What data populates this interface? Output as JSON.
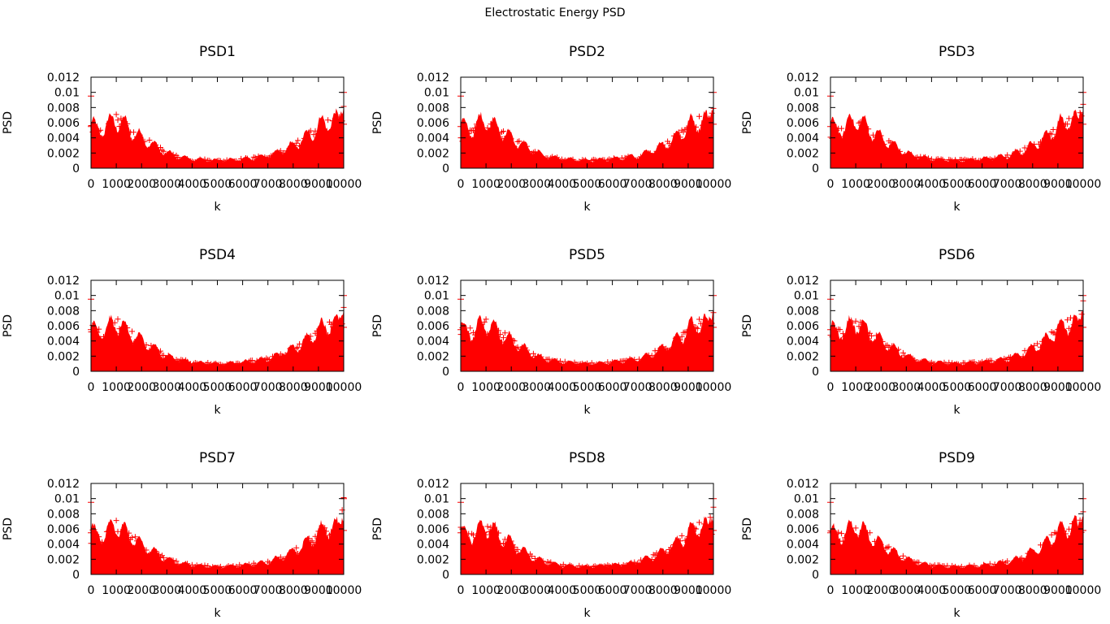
{
  "figure_title": "Electrostatic Energy PSD",
  "colors": {
    "series": "#ff0000",
    "axis": "#000000"
  },
  "chart_data": [
    {
      "type": "scatter",
      "title": "PSD1",
      "xlabel": "k",
      "ylabel": "PSD",
      "xlim": [
        0,
        10000
      ],
      "ylim": [
        0,
        0.012
      ],
      "xticks": [
        "0",
        "1000",
        "2000",
        "3000",
        "4000",
        "5000",
        "6000",
        "7000",
        "8000",
        "9000",
        "10000"
      ],
      "yticks": [
        "0",
        "0.002",
        "0.004",
        "0.006",
        "0.008",
        "0.01",
        "0.012"
      ],
      "envelope": {
        "k": [
          0,
          200,
          600,
          1000,
          1500,
          2000,
          2500,
          3000,
          3500,
          4000,
          5000,
          6000,
          6500,
          7000,
          7500,
          8000,
          8500,
          9000,
          9500,
          9800,
          10000
        ],
        "psd": [
          0.006,
          0.005,
          0.0055,
          0.0065,
          0.0052,
          0.004,
          0.003,
          0.002,
          0.0015,
          0.0012,
          0.001,
          0.0012,
          0.0014,
          0.0016,
          0.0022,
          0.003,
          0.004,
          0.0055,
          0.0065,
          0.006,
          0.01
        ]
      },
      "mark": "plus",
      "grid": false,
      "legend": "none"
    },
    {
      "type": "scatter",
      "title": "PSD2",
      "xlabel": "k",
      "ylabel": "PSD",
      "xlim": [
        0,
        10000
      ],
      "ylim": [
        0,
        0.012
      ],
      "xticks": [
        "0",
        "1000",
        "2000",
        "3000",
        "4000",
        "5000",
        "6000",
        "7000",
        "8000",
        "9000",
        "10000"
      ],
      "yticks": [
        "0",
        "0.002",
        "0.004",
        "0.006",
        "0.008",
        "0.01",
        "0.012"
      ],
      "envelope": {
        "k": [
          0,
          200,
          600,
          1000,
          1500,
          2000,
          2500,
          3000,
          3500,
          4000,
          5000,
          6000,
          6500,
          7000,
          7500,
          8000,
          8500,
          9000,
          9500,
          9800,
          10000
        ],
        "psd": [
          0.006,
          0.005,
          0.0055,
          0.0065,
          0.0052,
          0.004,
          0.003,
          0.002,
          0.0015,
          0.0012,
          0.001,
          0.0012,
          0.0014,
          0.0016,
          0.0022,
          0.003,
          0.004,
          0.0055,
          0.0065,
          0.006,
          0.01
        ]
      },
      "mark": "plus",
      "grid": false,
      "legend": "none"
    },
    {
      "type": "scatter",
      "title": "PSD3",
      "xlabel": "k",
      "ylabel": "PSD",
      "xlim": [
        0,
        10000
      ],
      "ylim": [
        0,
        0.012
      ],
      "xticks": [
        "0",
        "1000",
        "2000",
        "3000",
        "4000",
        "5000",
        "6000",
        "7000",
        "8000",
        "9000",
        "10000"
      ],
      "yticks": [
        "0",
        "0.002",
        "0.004",
        "0.006",
        "0.008",
        "0.01",
        "0.012"
      ],
      "envelope": {
        "k": [
          0,
          200,
          600,
          1000,
          1500,
          2000,
          2500,
          3000,
          3500,
          4000,
          5000,
          6000,
          6500,
          7000,
          7500,
          8000,
          8500,
          9000,
          9500,
          9800,
          10000
        ],
        "psd": [
          0.006,
          0.005,
          0.0055,
          0.0065,
          0.0052,
          0.004,
          0.003,
          0.002,
          0.0015,
          0.0012,
          0.001,
          0.0012,
          0.0014,
          0.0016,
          0.0022,
          0.003,
          0.004,
          0.0055,
          0.0065,
          0.006,
          0.01
        ]
      },
      "mark": "plus",
      "grid": false,
      "legend": "none"
    },
    {
      "type": "scatter",
      "title": "PSD4",
      "xlabel": "k",
      "ylabel": "PSD",
      "xlim": [
        0,
        10000
      ],
      "ylim": [
        0,
        0.012
      ],
      "xticks": [
        "0",
        "1000",
        "2000",
        "3000",
        "4000",
        "5000",
        "6000",
        "7000",
        "8000",
        "9000",
        "10000"
      ],
      "yticks": [
        "0",
        "0.002",
        "0.004",
        "0.006",
        "0.008",
        "0.01",
        "0.012"
      ],
      "envelope": {
        "k": [
          0,
          200,
          600,
          1000,
          1500,
          2000,
          2500,
          3000,
          3500,
          4000,
          5000,
          6000,
          6500,
          7000,
          7500,
          8000,
          8500,
          9000,
          9500,
          9800,
          10000
        ],
        "psd": [
          0.006,
          0.005,
          0.0055,
          0.0065,
          0.0052,
          0.004,
          0.003,
          0.002,
          0.0015,
          0.0012,
          0.001,
          0.0012,
          0.0014,
          0.0016,
          0.0022,
          0.003,
          0.004,
          0.0055,
          0.0065,
          0.006,
          0.01
        ]
      },
      "mark": "plus",
      "grid": false,
      "legend": "none"
    },
    {
      "type": "scatter",
      "title": "PSD5",
      "xlabel": "k",
      "ylabel": "PSD",
      "xlim": [
        0,
        10000
      ],
      "ylim": [
        0,
        0.012
      ],
      "xticks": [
        "0",
        "1000",
        "2000",
        "3000",
        "4000",
        "5000",
        "6000",
        "7000",
        "8000",
        "9000",
        "10000"
      ],
      "yticks": [
        "0",
        "0.002",
        "0.004",
        "0.006",
        "0.008",
        "0.01",
        "0.012"
      ],
      "envelope": {
        "k": [
          0,
          200,
          600,
          1000,
          1500,
          2000,
          2500,
          3000,
          3500,
          4000,
          5000,
          6000,
          6500,
          7000,
          7500,
          8000,
          8500,
          9000,
          9500,
          9800,
          10000
        ],
        "psd": [
          0.006,
          0.005,
          0.0055,
          0.0065,
          0.0052,
          0.004,
          0.003,
          0.002,
          0.0015,
          0.0012,
          0.001,
          0.0012,
          0.0014,
          0.0016,
          0.0022,
          0.003,
          0.004,
          0.0055,
          0.0065,
          0.006,
          0.01
        ]
      },
      "mark": "plus",
      "grid": false,
      "legend": "none"
    },
    {
      "type": "scatter",
      "title": "PSD6",
      "xlabel": "k",
      "ylabel": "PSD",
      "xlim": [
        0,
        10000
      ],
      "ylim": [
        0,
        0.012
      ],
      "xticks": [
        "0",
        "1000",
        "2000",
        "3000",
        "4000",
        "5000",
        "6000",
        "7000",
        "8000",
        "9000",
        "10000"
      ],
      "yticks": [
        "0",
        "0.002",
        "0.004",
        "0.006",
        "0.008",
        "0.01",
        "0.012"
      ],
      "envelope": {
        "k": [
          0,
          200,
          600,
          1000,
          1500,
          2000,
          2500,
          3000,
          3500,
          4000,
          5000,
          6000,
          6500,
          7000,
          7500,
          8000,
          8500,
          9000,
          9500,
          9800,
          10000
        ],
        "psd": [
          0.006,
          0.005,
          0.0055,
          0.0065,
          0.0052,
          0.004,
          0.003,
          0.002,
          0.0015,
          0.0012,
          0.001,
          0.0012,
          0.0014,
          0.0016,
          0.0022,
          0.003,
          0.004,
          0.0055,
          0.0065,
          0.006,
          0.01
        ]
      },
      "mark": "plus",
      "grid": false,
      "legend": "none"
    },
    {
      "type": "scatter",
      "title": "PSD7",
      "xlabel": "k",
      "ylabel": "PSD",
      "xlim": [
        0,
        10000
      ],
      "ylim": [
        0,
        0.012
      ],
      "xticks": [
        "0",
        "1000",
        "2000",
        "3000",
        "4000",
        "5000",
        "6000",
        "7000",
        "8000",
        "9000",
        "10000"
      ],
      "yticks": [
        "0",
        "0.002",
        "0.004",
        "0.006",
        "0.008",
        "0.01",
        "0.012"
      ],
      "envelope": {
        "k": [
          0,
          200,
          600,
          1000,
          1500,
          2000,
          2500,
          3000,
          3500,
          4000,
          5000,
          6000,
          6500,
          7000,
          7500,
          8000,
          8500,
          9000,
          9500,
          9800,
          10000
        ],
        "psd": [
          0.006,
          0.005,
          0.0055,
          0.0065,
          0.0052,
          0.004,
          0.003,
          0.002,
          0.0015,
          0.0012,
          0.001,
          0.0012,
          0.0014,
          0.0016,
          0.0022,
          0.003,
          0.004,
          0.0055,
          0.0065,
          0.006,
          0.01
        ]
      },
      "mark": "plus",
      "grid": false,
      "legend": "none"
    },
    {
      "type": "scatter",
      "title": "PSD8",
      "xlabel": "k",
      "ylabel": "PSD",
      "xlim": [
        0,
        10000
      ],
      "ylim": [
        0,
        0.012
      ],
      "xticks": [
        "0",
        "1000",
        "2000",
        "3000",
        "4000",
        "5000",
        "6000",
        "7000",
        "8000",
        "9000",
        "10000"
      ],
      "yticks": [
        "0",
        "0.002",
        "0.004",
        "0.006",
        "0.008",
        "0.01",
        "0.012"
      ],
      "envelope": {
        "k": [
          0,
          200,
          600,
          1000,
          1500,
          2000,
          2500,
          3000,
          3500,
          4000,
          5000,
          6000,
          6500,
          7000,
          7500,
          8000,
          8500,
          9000,
          9500,
          9800,
          10000
        ],
        "psd": [
          0.006,
          0.005,
          0.0055,
          0.0065,
          0.0052,
          0.004,
          0.003,
          0.002,
          0.0015,
          0.0012,
          0.001,
          0.0012,
          0.0014,
          0.0016,
          0.0022,
          0.003,
          0.004,
          0.0055,
          0.0065,
          0.006,
          0.01
        ]
      },
      "mark": "plus",
      "grid": false,
      "legend": "none"
    },
    {
      "type": "scatter",
      "title": "PSD9",
      "xlabel": "k",
      "ylabel": "PSD",
      "xlim": [
        0,
        10000
      ],
      "ylim": [
        0,
        0.012
      ],
      "xticks": [
        "0",
        "1000",
        "2000",
        "3000",
        "4000",
        "5000",
        "6000",
        "7000",
        "8000",
        "9000",
        "10000"
      ],
      "yticks": [
        "0",
        "0.002",
        "0.004",
        "0.006",
        "0.008",
        "0.01",
        "0.012"
      ],
      "envelope": {
        "k": [
          0,
          200,
          600,
          1000,
          1500,
          2000,
          2500,
          3000,
          3500,
          4000,
          5000,
          6000,
          6500,
          7000,
          7500,
          8000,
          8500,
          9000,
          9500,
          9800,
          10000
        ],
        "psd": [
          0.006,
          0.005,
          0.0055,
          0.0065,
          0.0052,
          0.004,
          0.003,
          0.002,
          0.0015,
          0.0012,
          0.001,
          0.0012,
          0.0014,
          0.0016,
          0.0022,
          0.003,
          0.004,
          0.0055,
          0.0065,
          0.006,
          0.01
        ]
      },
      "mark": "plus",
      "grid": false,
      "legend": "none"
    }
  ]
}
